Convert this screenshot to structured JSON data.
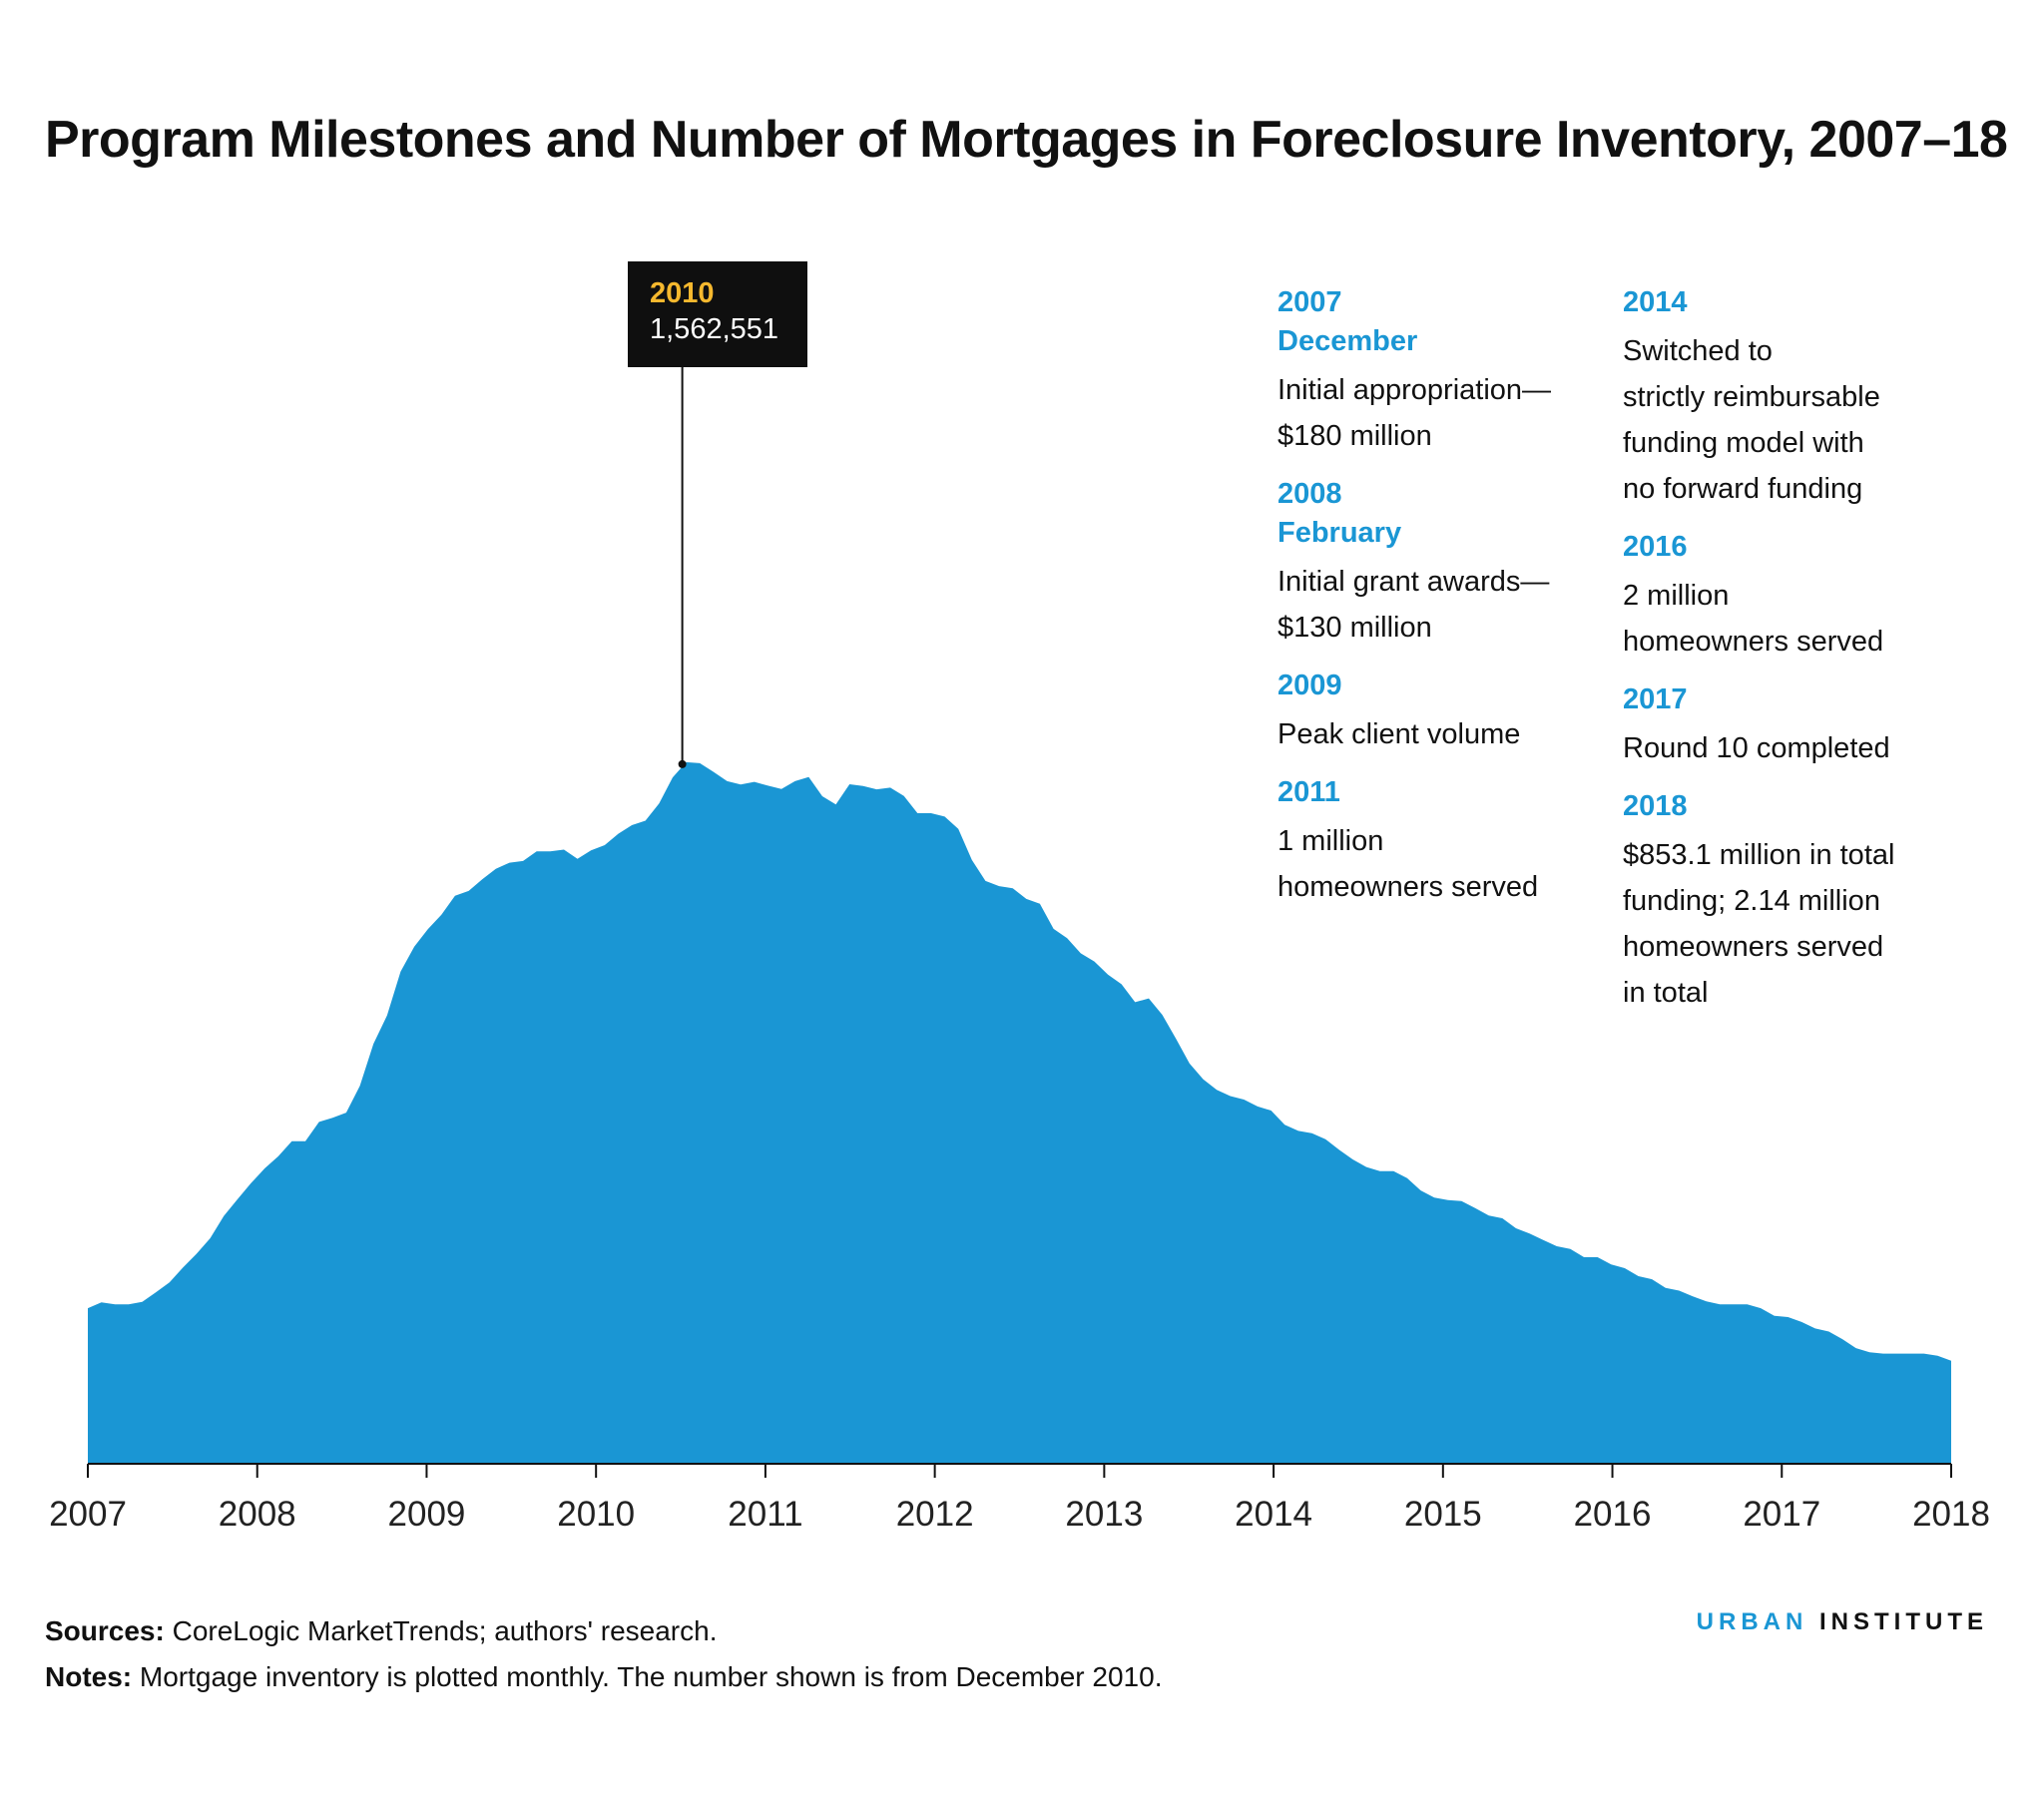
{
  "title": "Program Milestones and Number of Mortgages in Foreclosure Inventory, 2007–18",
  "chart_data": {
    "type": "area",
    "xlabel": "",
    "ylabel": "",
    "x_start": 2007,
    "x_end": 2018,
    "x_ticks": [
      "2007",
      "2008",
      "2009",
      "2010",
      "2011",
      "2012",
      "2013",
      "2014",
      "2015",
      "2016",
      "2017",
      "2018"
    ],
    "color": "#1a96d4",
    "series": [
      {
        "values": [
          452000,
          469000,
          463000,
          463000,
          470000,
          498000,
          527000,
          570000,
          610000,
          655000,
          720000,
          768000,
          815000,
          858000,
          893000,
          937000,
          937000,
          993000,
          1005000,
          1020000,
          1098000,
          1220000,
          1302000,
          1430000,
          1502000,
          1553000,
          1595000,
          1650000,
          1664000,
          1698000,
          1728000,
          1746000,
          1751000,
          1779000,
          1779000,
          1784000,
          1757000,
          1782000,
          1797000,
          1830000,
          1855000,
          1868000,
          1918000,
          1994000,
          2038000,
          2035000,
          2010000,
          1983000,
          1973000,
          1981000,
          1970000,
          1960000,
          1983000,
          1995000,
          1939000,
          1915000,
          1974000,
          1969000,
          1959000,
          1964000,
          1940000,
          1890000,
          1890000,
          1880000,
          1844000,
          1754000,
          1693000,
          1678000,
          1672000,
          1641000,
          1627000,
          1554000,
          1527000,
          1483000,
          1459000,
          1421000,
          1393000,
          1341000,
          1352000,
          1304000,
          1235000,
          1163000,
          1117000,
          1086000,
          1068000,
          1058000,
          1038000,
          1026000,
          985000,
          967000,
          960000,
          943000,
          912000,
          884000,
          862000,
          850000,
          850000,
          830000,
          794000,
          773000,
          766000,
          763000,
          743000,
          721000,
          713000,
          684000,
          669000,
          650000,
          632000,
          624000,
          600000,
          600000,
          579000,
          568000,
          545000,
          536000,
          511000,
          503000,
          486000,
          472000,
          463000,
          463000,
          463000,
          452000,
          430000,
          426000,
          412000,
          393000,
          384000,
          362000,
          336000,
          324000,
          320000,
          320000,
          320000,
          320000,
          314000,
          299000
        ],
        "annotation": {
          "x_label": "2010",
          "value_label": "1,562,551"
        }
      }
    ]
  },
  "tooltip": {
    "year": "2010",
    "value": "1,562,551"
  },
  "milestones_left": [
    {
      "year": "2007",
      "month": "December",
      "text": [
        "Initial appropriation—",
        "$180 million"
      ]
    },
    {
      "year": "2008",
      "month": "February",
      "text": [
        "Initial grant awards—",
        "$130 million"
      ]
    },
    {
      "year": "2009",
      "text": [
        "Peak client volume"
      ]
    },
    {
      "year": "2011",
      "text": [
        "1 million",
        "homeowners served"
      ]
    }
  ],
  "milestones_right": [
    {
      "year": "2014",
      "text": [
        "Switched to",
        "strictly reimbursable",
        "funding model with",
        "no forward funding"
      ]
    },
    {
      "year": "2016",
      "text": [
        "2 million",
        "homeowners served"
      ]
    },
    {
      "year": "2017",
      "text": [
        "Round 10 completed"
      ]
    },
    {
      "year": "2018",
      "text": [
        "$853.1 million in total",
        "funding; 2.14 million",
        "homeowners served",
        "in total"
      ]
    }
  ],
  "footer": {
    "sources_label": "Sources:",
    "sources_text": " CoreLogic MarketTrends; authors' research.",
    "notes_label": "Notes:",
    "notes_text": " Mortgage inventory is plotted monthly. The number shown is from December 2010.",
    "brand_urban": "URBAN",
    "brand_institute": "INSTITUTE"
  }
}
